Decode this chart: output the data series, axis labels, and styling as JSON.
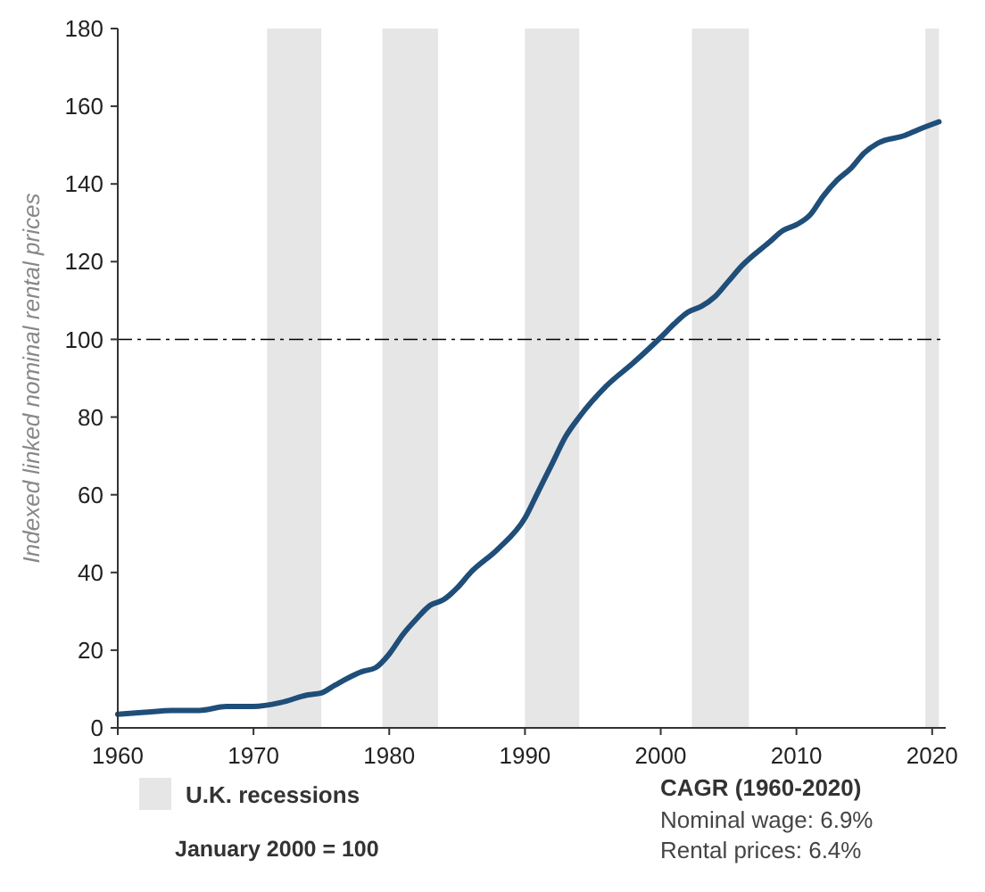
{
  "chart_data": {
    "type": "line",
    "ylabel": "Indexed linked nominal rental prices",
    "x": [
      1960,
      1962,
      1964,
      1966,
      1968,
      1970,
      1972,
      1974,
      1975,
      1976,
      1978,
      1979,
      1980,
      1981,
      1982,
      1983,
      1984,
      1985,
      1986,
      1988,
      1990,
      1991,
      1992,
      1993,
      1994,
      1996,
      1998,
      2000,
      2001,
      2002,
      2003,
      2004,
      2005,
      2006,
      2008,
      2009,
      2010,
      2011,
      2012,
      2013,
      2014,
      2015,
      2016,
      2018,
      2019,
      2020.5
    ],
    "series": [
      {
        "color": "#1f4e79",
        "values": [
          3.5,
          4,
          4.5,
          4.5,
          5.5,
          5.5,
          6.5,
          8.5,
          9,
          11,
          14.5,
          15.5,
          19,
          24,
          28,
          31.5,
          33,
          36,
          40,
          46,
          54,
          61,
          68,
          75,
          80,
          88,
          94,
          100.5,
          104,
          107,
          108.5,
          111,
          115,
          119,
          125,
          128,
          129.5,
          132,
          137,
          141,
          144,
          148,
          150.5,
          152.5,
          154,
          156
        ]
      }
    ],
    "xlim": [
      1960,
      2021
    ],
    "xticks": [
      1960,
      1970,
      1980,
      1990,
      2000,
      2010,
      2020
    ],
    "ylim": [
      0,
      180
    ],
    "yticks": [
      0,
      20,
      40,
      60,
      80,
      100,
      120,
      140,
      160,
      180
    ],
    "ref_lines": [
      {
        "axis": "y",
        "value": 100,
        "color": "#000000",
        "line_style": "dashed"
      }
    ],
    "bands": [
      {
        "axis": "x",
        "from": 1971,
        "to": 1975,
        "label": "U.K. recessions",
        "color": "#e7e6e6"
      },
      {
        "axis": "x",
        "from": 1979.5,
        "to": 1983.6,
        "color": "#e7e6e6"
      },
      {
        "axis": "x",
        "from": 1990,
        "to": 1994,
        "color": "#e7e6e6"
      },
      {
        "axis": "x",
        "from": 2002.3,
        "to": 2006.5,
        "color": "#e7e6e6"
      },
      {
        "axis": "x",
        "from": 2019.5,
        "to": 2020.5,
        "color": "#e7e6e6"
      }
    ],
    "annotations": [
      "January 2000 = 100",
      "CAGR (1960-2020)",
      "Nominal wage: 6.9%",
      "Rental prices: 6.4%"
    ],
    "legend": "bottom left",
    "grid": false,
    "marker": "none",
    "line_style": "solid"
  }
}
